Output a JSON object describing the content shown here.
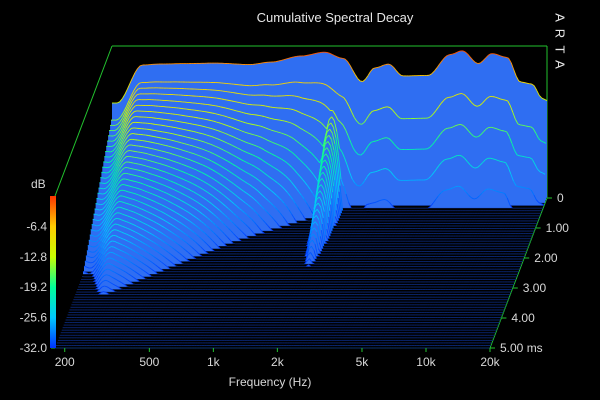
{
  "chart_data": {
    "type": "waterfall",
    "title": "Cumulative Spectral Decay",
    "watermark": "ARTA",
    "xlabel": "Frequency (Hz)",
    "x_scale": "log",
    "xlim": [
      180,
      20000
    ],
    "x_ticks": [
      {
        "value": 200,
        "label": "200"
      },
      {
        "value": 500,
        "label": "500"
      },
      {
        "value": 1000,
        "label": "1k"
      },
      {
        "value": 2000,
        "label": "2k"
      },
      {
        "value": 5000,
        "label": "5k"
      },
      {
        "value": 10000,
        "label": "10k"
      },
      {
        "value": 20000,
        "label": "20k"
      }
    ],
    "zlabel": "dB",
    "zlim": [
      -32.0,
      0
    ],
    "z_ticks": [
      {
        "value": -6.4,
        "label": "-6.4"
      },
      {
        "value": -12.8,
        "label": "-12.8"
      },
      {
        "value": -19.2,
        "label": "-19.2"
      },
      {
        "value": -25.6,
        "label": "-25.6"
      },
      {
        "value": -32.0,
        "label": "-32.0"
      }
    ],
    "time_ticks": [
      {
        "value": 0,
        "label": "0"
      },
      {
        "value": 1.0,
        "label": "1.00"
      },
      {
        "value": 2.0,
        "label": "2.00"
      },
      {
        "value": 3.0,
        "label": "3.00"
      },
      {
        "value": 4.0,
        "label": "4.00"
      },
      {
        "value": 5.0,
        "label": "5.00 ms"
      }
    ],
    "time_range_ms": [
      0,
      5.0
    ],
    "slice_count": 60,
    "initial_response": [
      {
        "f": 190,
        "db": -12
      },
      {
        "f": 250,
        "db": -4
      },
      {
        "f": 300,
        "db": -3.8
      },
      {
        "f": 400,
        "db": -3.7
      },
      {
        "f": 550,
        "db": -3.6
      },
      {
        "f": 800,
        "db": -3.9
      },
      {
        "f": 1000,
        "db": -3.4
      },
      {
        "f": 1400,
        "db": -2.1
      },
      {
        "f": 1800,
        "db": -1.3
      },
      {
        "f": 2200,
        "db": -2.6
      },
      {
        "f": 2700,
        "db": -7.5
      },
      {
        "f": 3100,
        "db": -4.6
      },
      {
        "f": 3600,
        "db": -3.8
      },
      {
        "f": 4200,
        "db": -6.3
      },
      {
        "f": 5500,
        "db": -6.2
      },
      {
        "f": 7000,
        "db": -1.8
      },
      {
        "f": 8000,
        "db": -1.0
      },
      {
        "f": 9500,
        "db": -3.7
      },
      {
        "f": 11000,
        "db": -1.6
      },
      {
        "f": 13000,
        "db": -2.4
      },
      {
        "f": 15000,
        "db": -7.6
      },
      {
        "f": 17000,
        "db": -8.0
      },
      {
        "f": 19000,
        "db": -11.0
      },
      {
        "f": 20000,
        "db": -11.5
      }
    ],
    "resonances": [
      {
        "f": 2000,
        "db": -11
      },
      {
        "f": 1300,
        "db": -25
      },
      {
        "f": 800,
        "db": -27
      },
      {
        "f": 3000,
        "db": -28
      }
    ],
    "colormap": [
      "#0033ff",
      "#00c8ff",
      "#00ff99",
      "#c8ff00",
      "#ffcc00",
      "#ff3300"
    ],
    "floor_color": "#2f6ef2",
    "frame_color": "#22c22e",
    "grid": false
  }
}
